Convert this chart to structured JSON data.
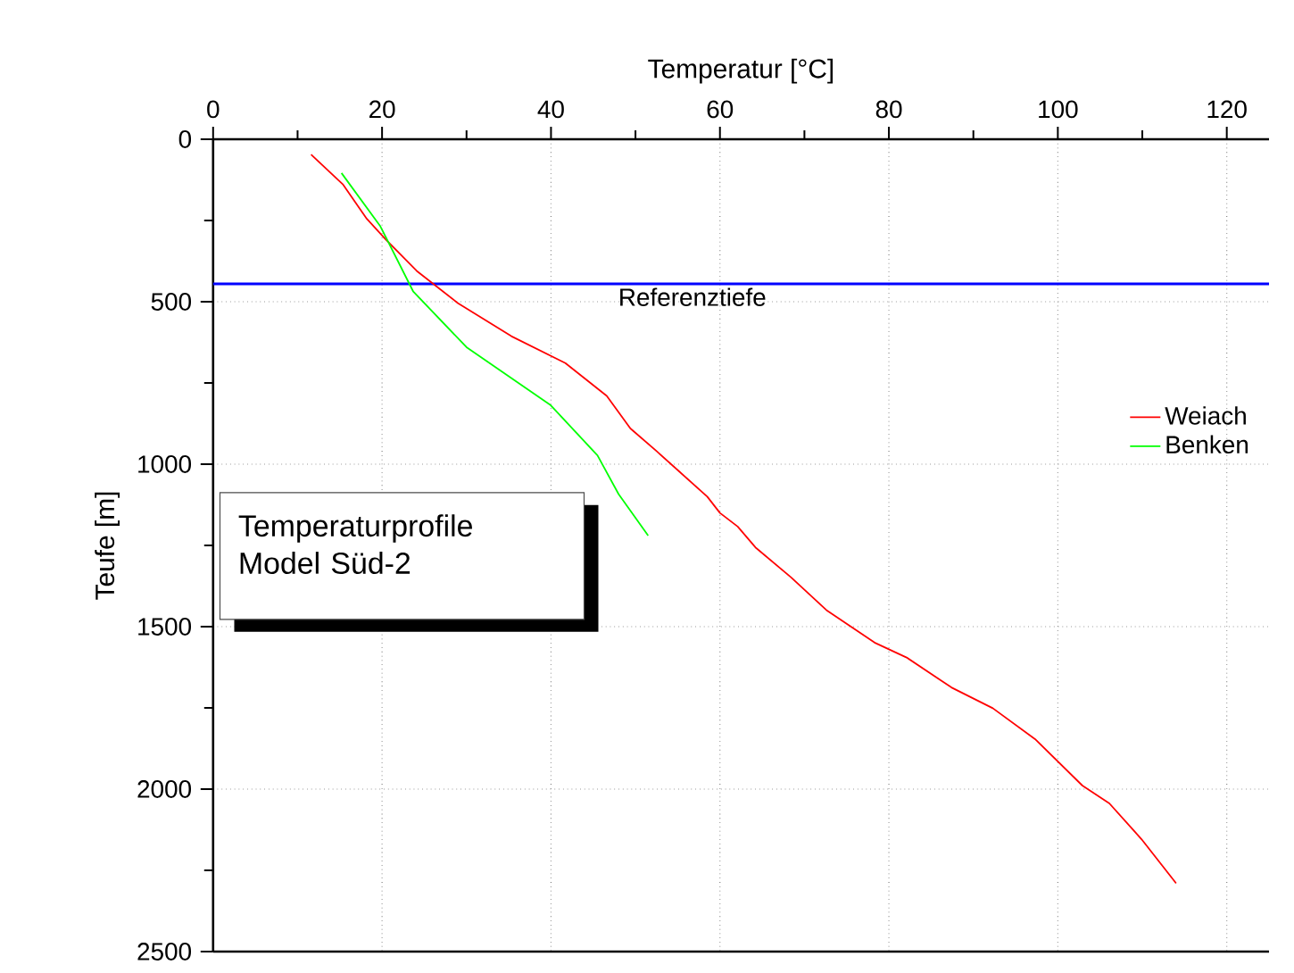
{
  "chart_data": {
    "type": "line",
    "xlabel": "Temperatur [°C]",
    "ylabel": "Teufe [m]",
    "xlim": [
      0,
      125
    ],
    "xticks": [
      0,
      20,
      40,
      60,
      80,
      100,
      120
    ],
    "ylim": [
      2500,
      0
    ],
    "yticks": [
      0,
      500,
      1000,
      1500,
      2000,
      2500
    ],
    "grid": true,
    "legend": "right",
    "marker": "none",
    "line_style": "solid",
    "series": [
      {
        "name": "Weiach",
        "color": "#ff0000",
        "x": [
          11.6,
          15.4,
          18.2,
          20.5,
          24.1,
          29.0,
          35.3,
          41.7,
          46.6,
          49.4,
          52.5,
          58.5,
          60.0,
          62.1,
          64.2,
          68.4,
          72.6,
          78.3,
          82.1,
          87.4,
          92.3,
          97.3,
          102.9,
          106.1,
          109.9,
          114.0
        ],
        "values": [
          47,
          140,
          245,
          310,
          405,
          505,
          606,
          689,
          790,
          890,
          960,
          1100,
          1150,
          1192,
          1256,
          1348,
          1449,
          1549,
          1595,
          1687,
          1751,
          1846,
          1989,
          2044,
          2154,
          2290
        ]
      },
      {
        "name": "Benken",
        "color": "#00ff00",
        "x": [
          15.2,
          19.8,
          23.7,
          30.0,
          39.9,
          45.5,
          48.0,
          51.5
        ],
        "values": [
          104,
          268,
          469,
          640,
          817,
          973,
          1092,
          1220
        ]
      }
    ],
    "ref_lines": [
      {
        "axis": "y",
        "value": 445,
        "label": "Referenztiefe",
        "color": "#0000ff"
      }
    ],
    "annotations": [
      "Temperaturprofile",
      "Model Süd-2"
    ]
  }
}
